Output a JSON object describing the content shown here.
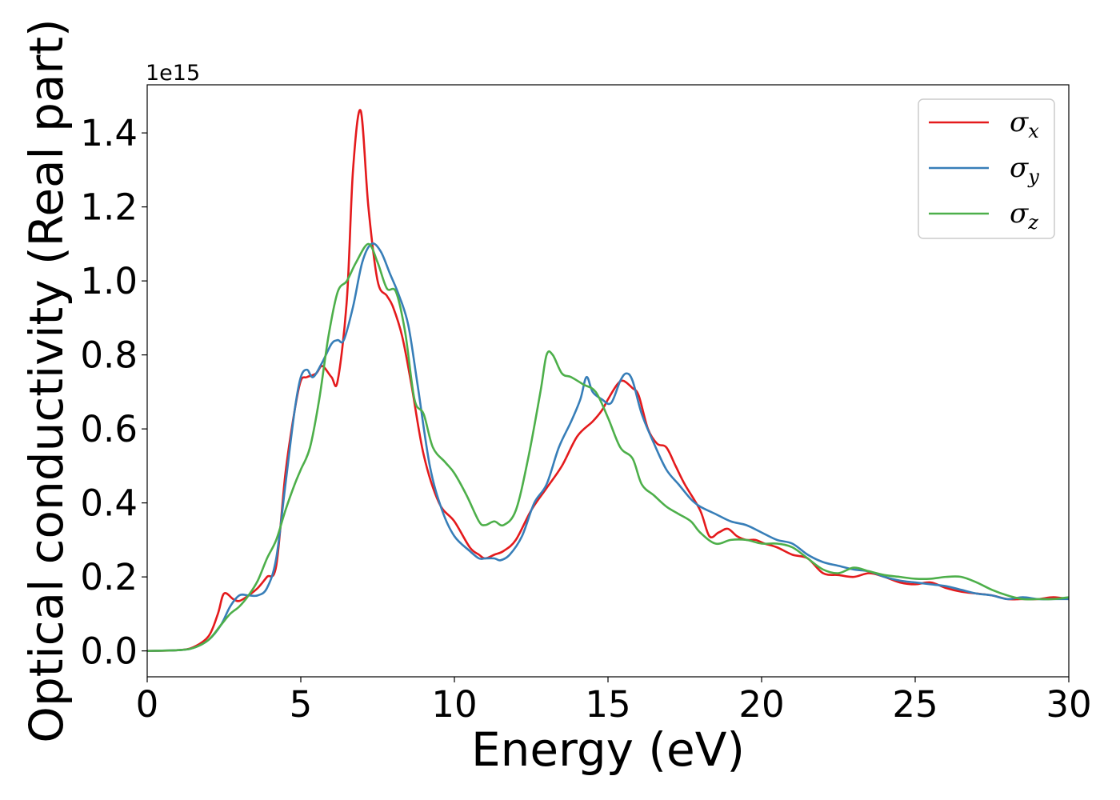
{
  "chart_data": {
    "type": "line",
    "title": "",
    "xlabel": "Energy (eV)",
    "ylabel": "Optical conductivity (Real part)",
    "y_offset_text": "1e15",
    "xlim": [
      0,
      30
    ],
    "ylim": [
      -0.07,
      1.53
    ],
    "y_scale_factor": 1000000000000000.0,
    "x_ticks": [
      0,
      5,
      10,
      15,
      20,
      25,
      30
    ],
    "x_tick_labels": [
      "0",
      "5",
      "10",
      "15",
      "20",
      "25",
      "30"
    ],
    "y_ticks": [
      0.0,
      0.2,
      0.4,
      0.6,
      0.8,
      1.0,
      1.2,
      1.4
    ],
    "y_tick_labels": [
      "0.0",
      "0.2",
      "0.4",
      "0.6",
      "0.8",
      "1.0",
      "1.2",
      "1.4"
    ],
    "grid": false,
    "legend_position": "top-right",
    "series": [
      {
        "name": "σx",
        "symbol": "σ",
        "subscript": "x",
        "color": "#e41a1c",
        "x": [
          0,
          1,
          1.5,
          2,
          2.3,
          2.5,
          2.8,
          3.0,
          3.3,
          3.6,
          3.9,
          4.2,
          4.5,
          4.8,
          5.0,
          5.2,
          5.5,
          5.7,
          6.0,
          6.2,
          6.5,
          6.7,
          6.95,
          7.2,
          7.5,
          7.8,
          8.0,
          8.3,
          8.6,
          9.0,
          9.5,
          10.0,
          10.5,
          10.8,
          11.0,
          11.3,
          11.6,
          12.0,
          12.5,
          13.0,
          13.5,
          14.0,
          14.5,
          14.8,
          15.0,
          15.3,
          15.5,
          15.8,
          16.0,
          16.3,
          16.6,
          16.9,
          17.2,
          17.5,
          18.0,
          18.3,
          18.6,
          18.9,
          19.2,
          19.5,
          19.8,
          20.1,
          20.5,
          21.0,
          21.5,
          22.0,
          22.5,
          23.0,
          23.5,
          24.0,
          24.5,
          25.0,
          25.5,
          26.0,
          26.5,
          27.0,
          27.5,
          28.0,
          28.5,
          29.0,
          29.5,
          30.0
        ],
        "values": [
          0,
          0.002,
          0.01,
          0.04,
          0.1,
          0.155,
          0.14,
          0.135,
          0.15,
          0.17,
          0.2,
          0.23,
          0.48,
          0.65,
          0.73,
          0.74,
          0.75,
          0.77,
          0.74,
          0.73,
          0.95,
          1.3,
          1.46,
          1.2,
          1.0,
          0.96,
          0.93,
          0.85,
          0.72,
          0.53,
          0.4,
          0.35,
          0.28,
          0.26,
          0.25,
          0.26,
          0.27,
          0.3,
          0.38,
          0.44,
          0.5,
          0.58,
          0.62,
          0.65,
          0.68,
          0.72,
          0.73,
          0.71,
          0.69,
          0.6,
          0.56,
          0.55,
          0.5,
          0.45,
          0.38,
          0.31,
          0.32,
          0.33,
          0.31,
          0.3,
          0.3,
          0.29,
          0.28,
          0.26,
          0.25,
          0.21,
          0.205,
          0.2,
          0.21,
          0.2,
          0.185,
          0.18,
          0.185,
          0.17,
          0.16,
          0.155,
          0.15,
          0.14,
          0.14,
          0.14,
          0.145,
          0.14
        ]
      },
      {
        "name": "σy",
        "symbol": "σ",
        "subscript": "y",
        "color": "#377eb8",
        "x": [
          0,
          1,
          1.5,
          2,
          2.4,
          2.7,
          3.0,
          3.3,
          3.6,
          3.9,
          4.2,
          4.5,
          4.8,
          5.0,
          5.2,
          5.4,
          5.7,
          6.0,
          6.2,
          6.4,
          6.7,
          7.0,
          7.3,
          7.6,
          7.9,
          8.2,
          8.5,
          8.8,
          9.2,
          9.6,
          10.0,
          10.5,
          10.8,
          11.0,
          11.3,
          11.5,
          11.8,
          12.2,
          12.6,
          13.0,
          13.4,
          13.8,
          14.1,
          14.3,
          14.5,
          14.8,
          15.1,
          15.4,
          15.6,
          15.8,
          16.1,
          16.5,
          16.9,
          17.3,
          17.7,
          18.0,
          18.5,
          19.0,
          19.5,
          20.0,
          20.5,
          21.0,
          21.5,
          22.0,
          22.5,
          23.0,
          23.5,
          24.0,
          24.5,
          25.0,
          25.5,
          26.0,
          26.5,
          27.0,
          27.5,
          28.0,
          28.5,
          29.0,
          29.5,
          30.0
        ],
        "values": [
          0,
          0.002,
          0.008,
          0.03,
          0.07,
          0.12,
          0.15,
          0.15,
          0.15,
          0.17,
          0.25,
          0.45,
          0.65,
          0.74,
          0.76,
          0.74,
          0.78,
          0.83,
          0.84,
          0.84,
          0.93,
          1.05,
          1.1,
          1.08,
          1.02,
          0.96,
          0.88,
          0.72,
          0.5,
          0.38,
          0.31,
          0.27,
          0.25,
          0.25,
          0.25,
          0.245,
          0.26,
          0.31,
          0.4,
          0.45,
          0.55,
          0.62,
          0.68,
          0.74,
          0.7,
          0.68,
          0.67,
          0.73,
          0.75,
          0.73,
          0.64,
          0.56,
          0.49,
          0.45,
          0.41,
          0.39,
          0.37,
          0.35,
          0.34,
          0.32,
          0.3,
          0.29,
          0.26,
          0.24,
          0.23,
          0.22,
          0.215,
          0.2,
          0.19,
          0.185,
          0.18,
          0.175,
          0.165,
          0.155,
          0.15,
          0.14,
          0.145,
          0.14,
          0.14,
          0.14
        ]
      },
      {
        "name": "σz",
        "symbol": "σ",
        "subscript": "z",
        "color": "#4daf4a",
        "x": [
          0,
          1,
          1.5,
          2,
          2.4,
          2.7,
          3.0,
          3.3,
          3.6,
          3.9,
          4.2,
          4.5,
          4.8,
          5.0,
          5.3,
          5.6,
          5.9,
          6.2,
          6.5,
          6.8,
          7.2,
          7.5,
          7.8,
          8.1,
          8.4,
          8.7,
          9.0,
          9.3,
          9.7,
          10.0,
          10.4,
          10.8,
          11.0,
          11.3,
          11.6,
          12.0,
          12.4,
          12.8,
          13.0,
          13.2,
          13.5,
          13.8,
          14.2,
          14.6,
          15.0,
          15.4,
          15.8,
          16.1,
          16.5,
          16.9,
          17.3,
          17.7,
          18.0,
          18.5,
          19.0,
          19.5,
          20.0,
          20.5,
          21.0,
          21.5,
          22.0,
          22.5,
          23.0,
          23.5,
          24.0,
          24.5,
          25.0,
          25.5,
          26.0,
          26.5,
          27.0,
          27.5,
          28.0,
          28.5,
          29.0,
          29.5,
          30.0
        ],
        "values": [
          0,
          0.002,
          0.008,
          0.03,
          0.07,
          0.1,
          0.12,
          0.15,
          0.19,
          0.25,
          0.3,
          0.38,
          0.45,
          0.49,
          0.55,
          0.68,
          0.85,
          0.97,
          1.0,
          1.05,
          1.1,
          1.05,
          0.98,
          0.97,
          0.86,
          0.68,
          0.64,
          0.55,
          0.51,
          0.48,
          0.42,
          0.35,
          0.34,
          0.35,
          0.34,
          0.38,
          0.52,
          0.7,
          0.8,
          0.8,
          0.75,
          0.74,
          0.72,
          0.7,
          0.63,
          0.55,
          0.52,
          0.45,
          0.42,
          0.39,
          0.37,
          0.35,
          0.32,
          0.29,
          0.3,
          0.3,
          0.29,
          0.29,
          0.28,
          0.25,
          0.22,
          0.21,
          0.225,
          0.215,
          0.205,
          0.2,
          0.195,
          0.195,
          0.2,
          0.2,
          0.185,
          0.165,
          0.15,
          0.14,
          0.14,
          0.14,
          0.145
        ]
      }
    ]
  }
}
